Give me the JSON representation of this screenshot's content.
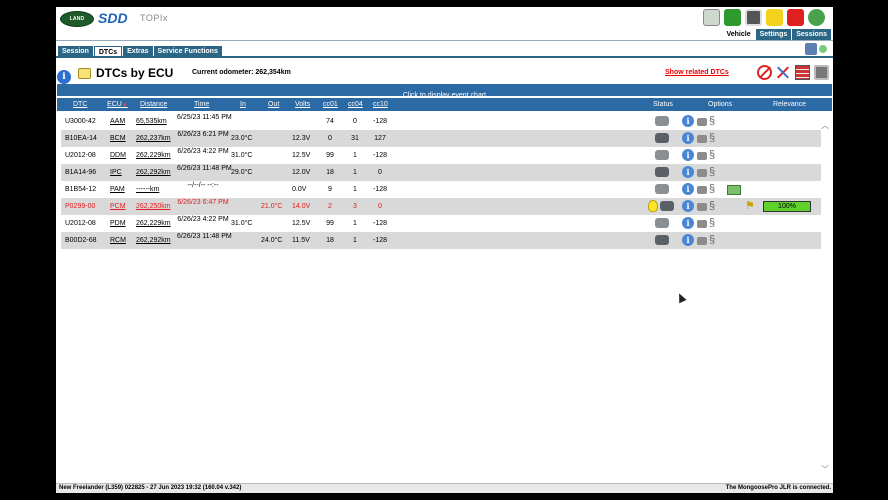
{
  "header": {
    "logo_text": "LAND ROVER",
    "brand": "SDD",
    "product": "TOPIx",
    "top_tabs": [
      "Vehicle",
      "Settings",
      "Sessions"
    ],
    "top_icons": [
      "car-icon",
      "plug-icon",
      "printer-icon",
      "notes-icon",
      "rss-icon",
      "globe-icon"
    ]
  },
  "subtabs": [
    "Session",
    "DTCs",
    "Extras",
    "Service Functions"
  ],
  "page": {
    "title": "DTCs by ECU",
    "odometer": "Current odometer: 262,354km",
    "related_link": "Show related DTCs",
    "event_chart_link": "Click to display event chart"
  },
  "table": {
    "columns": {
      "dtc": "DTC",
      "ecu": "ECU",
      "distance": "Distance",
      "time": "Time",
      "in": "In",
      "out": "Out",
      "volts": "Volts",
      "cc01": "cc01",
      "cc04": "cc04",
      "cc10": "cc10",
      "status": "Status",
      "options": "Options",
      "relevance": "Relevance"
    },
    "rows": [
      {
        "dtc": "U3000-42",
        "ecu": "AAM",
        "distance": "65,535km",
        "time": "6/25/23 11:45 PM",
        "in": "",
        "out": "",
        "volts": "",
        "cc01": "74",
        "cc04": "0",
        "cc10": "-128",
        "shade": false,
        "red": false
      },
      {
        "dtc": "B10EA-14",
        "ecu": "BCM",
        "distance": "262,237km",
        "time": "6/26/23 6:21 PM",
        "in": "23.0°C",
        "out": "",
        "volts": "12.3V",
        "cc01": "0",
        "cc04": "31",
        "cc10": "127",
        "shade": true,
        "red": false
      },
      {
        "dtc": "U2012-08",
        "ecu": "DDM",
        "distance": "262,229km",
        "time": "6/26/23 4:22 PM",
        "in": "31.0°C",
        "out": "",
        "volts": "12.5V",
        "cc01": "99",
        "cc04": "1",
        "cc10": "-128",
        "shade": false,
        "red": false
      },
      {
        "dtc": "B1A14-96",
        "ecu": "IPC",
        "distance": "262,292km",
        "time": "6/26/23 11:48 PM",
        "in": "29.0°C",
        "out": "",
        "volts": "12.0V",
        "cc01": "18",
        "cc04": "1",
        "cc10": "0",
        "shade": true,
        "red": false
      },
      {
        "dtc": "B1B54-12",
        "ecu": "PAM",
        "distance": "------km",
        "time": "--/--/-- --:--",
        "in": "",
        "out": "",
        "volts": "0.0V",
        "cc01": "9",
        "cc04": "1",
        "cc10": "-128",
        "shade": false,
        "red": false
      },
      {
        "dtc": "P0299-00",
        "ecu": "PCM",
        "distance": "262,250km",
        "time": "6/26/23 6:47 PM",
        "in": "",
        "out": "21.0°C",
        "volts": "14.0V",
        "cc01": "2",
        "cc04": "3",
        "cc10": "0",
        "shade": true,
        "red": true,
        "relevance": "100%"
      },
      {
        "dtc": "U2012-08",
        "ecu": "PDM",
        "distance": "262,229km",
        "time": "6/26/23 4:22 PM",
        "in": "31.0°C",
        "out": "",
        "volts": "12.5V",
        "cc01": "99",
        "cc04": "1",
        "cc10": "-128",
        "shade": false,
        "red": false
      },
      {
        "dtc": "B00D2-68",
        "ecu": "RCM",
        "distance": "262,292km",
        "time": "6/26/23 11:48 PM",
        "in": "",
        "out": "24.0°C",
        "volts": "11.5V",
        "cc01": "18",
        "cc04": "1",
        "cc10": "-128",
        "shade": true,
        "red": false
      }
    ]
  },
  "footer": {
    "left": "New Freelander (L359) 022825 - 27 Jun 2023 19:32 (160.04 v.342)",
    "right": "The MongoosePro JLR is connected."
  },
  "colors": {
    "tab_blue": "#2b6686",
    "bar_blue": "#2b6aa4",
    "alert_red": "#e02020",
    "relevance_green": "#5ed12a"
  }
}
